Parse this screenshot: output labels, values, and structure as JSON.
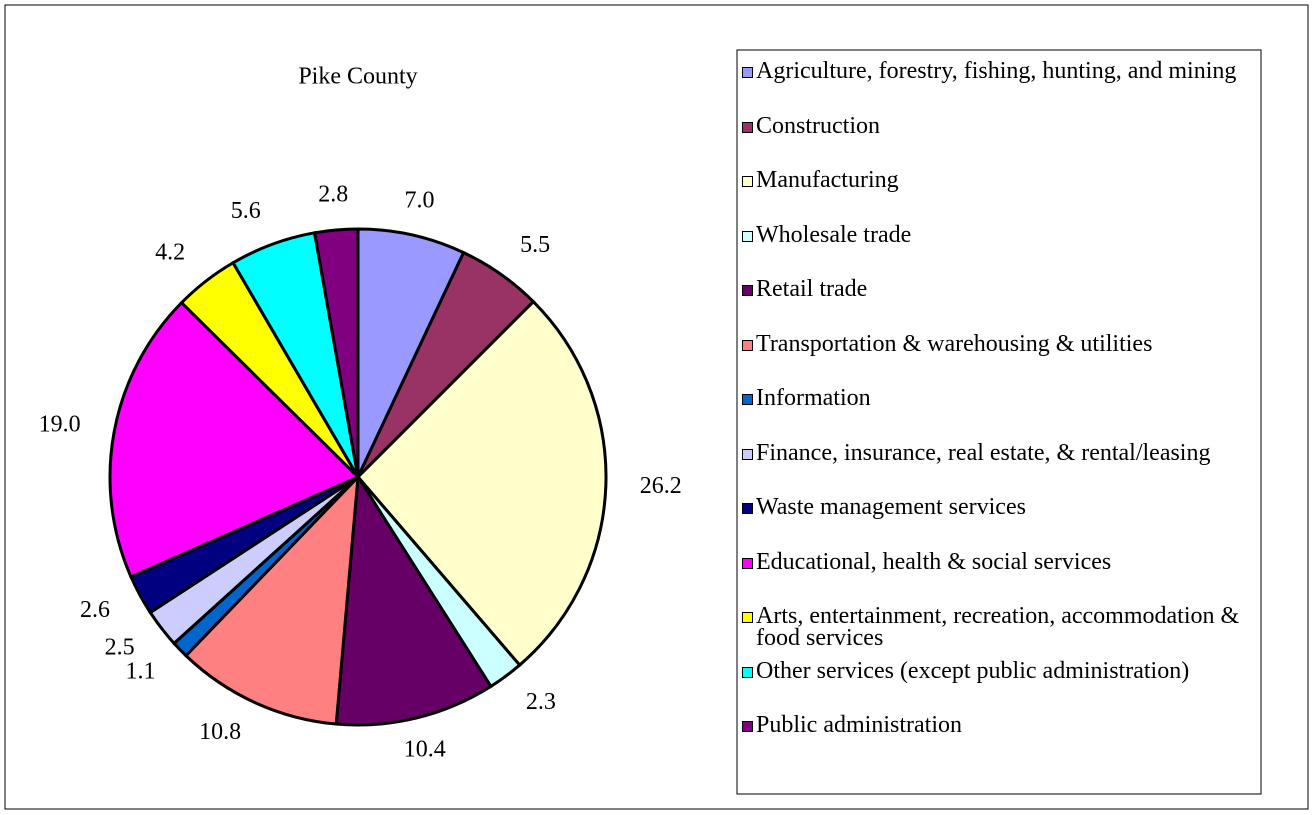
{
  "chart_data": {
    "type": "pie",
    "title": "Pike County",
    "categories": [
      "Agriculture, forestry, fishing, hunting, and mining",
      "Construction",
      "Manufacturing",
      "Wholesale trade",
      "Retail trade",
      "Transportation & warehousing & utilities",
      "Information",
      "Finance, insurance, real estate, & rental/leasing",
      "Waste management services",
      "Educational, health & social services",
      "Arts, entertainment, recreation, accommodation & food services",
      "Other services (except public administration)",
      "Public administration"
    ],
    "values": [
      7,
      5.5,
      26.2,
      2.3,
      10.4,
      10.8,
      1.1,
      2.5,
      2.6,
      19,
      4.2,
      5.6,
      2.8
    ],
    "value_labels": [
      "7.0",
      "5.5",
      "26.2",
      "2.3",
      "10.4",
      "10.8",
      "1.1",
      "2.5",
      "2.6",
      "19.0",
      "4.2",
      "5.6",
      "2.8"
    ],
    "colors": [
      "#9999ff",
      "#993366",
      "#ffffcc",
      "#ccffff",
      "#660066",
      "#ff8080",
      "#0066cc",
      "#ccccff",
      "#000080",
      "#ff00ff",
      "#ffff00",
      "#00ffff",
      "#800080"
    ],
    "legend": "right"
  }
}
